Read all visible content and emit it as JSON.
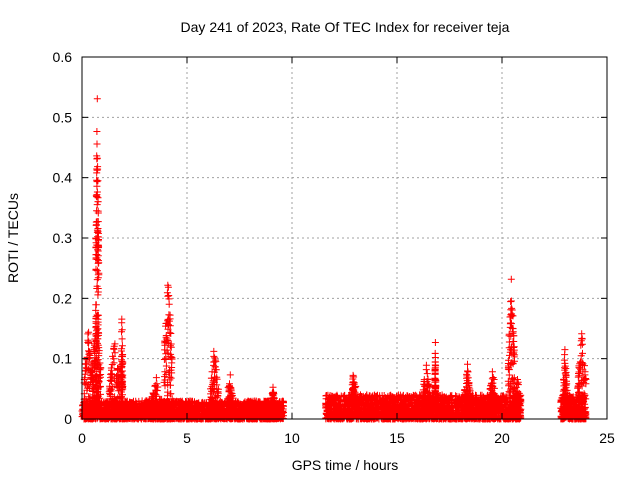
{
  "chart_data": {
    "type": "scatter",
    "title": "Day 241 of 2023, Rate Of TEC Index for receiver teja",
    "xlabel": "GPS time / hours",
    "ylabel": "ROTI / TECUs",
    "xlim": [
      0,
      25
    ],
    "ylim": [
      0,
      0.6
    ],
    "xticks": [
      0,
      5,
      10,
      15,
      20,
      25
    ],
    "yticks": [
      0,
      0.1,
      0.2,
      0.3,
      0.4,
      0.5,
      0.6
    ],
    "xtick_labels": [
      "0",
      "5",
      "10",
      "15",
      "20",
      "25"
    ],
    "ytick_labels": [
      "0",
      "0.1",
      "0.2",
      "0.3",
      "0.4",
      "0.5",
      "0.6"
    ],
    "grid": true,
    "marker": "plus",
    "colors": {
      "series": "#ff0000",
      "grid": "#a0a0a0",
      "axis": "#000000"
    },
    "segments": [
      {
        "x_start": 0.0,
        "x_end": 9.6,
        "typical_max": 0.03
      },
      {
        "x_start": 11.6,
        "x_end": 20.9,
        "typical_max": 0.04
      },
      {
        "x_start": 22.8,
        "x_end": 24.0,
        "typical_max": 0.04
      }
    ],
    "spikes": [
      {
        "x_start": 0.1,
        "x_end": 0.5,
        "y_max": 0.15
      },
      {
        "x_start": 0.5,
        "x_end": 0.9,
        "y_max": 0.19
      },
      {
        "x_start": 0.65,
        "x_end": 0.8,
        "y_max": 0.555
      },
      {
        "x_start": 1.3,
        "x_end": 1.8,
        "y_max": 0.13
      },
      {
        "x_start": 1.85,
        "x_end": 1.95,
        "y_max": 0.18
      },
      {
        "x_start": 3.3,
        "x_end": 3.8,
        "y_max": 0.07
      },
      {
        "x_start": 3.9,
        "x_end": 4.3,
        "y_max": 0.237
      },
      {
        "x_start": 6.1,
        "x_end": 6.5,
        "y_max": 0.125
      },
      {
        "x_start": 6.9,
        "x_end": 7.2,
        "y_max": 0.08
      },
      {
        "x_start": 9.0,
        "x_end": 9.2,
        "y_max": 0.055
      },
      {
        "x_start": 12.8,
        "x_end": 13.1,
        "y_max": 0.085
      },
      {
        "x_start": 16.2,
        "x_end": 16.6,
        "y_max": 0.09
      },
      {
        "x_start": 16.8,
        "x_end": 16.85,
        "y_max": 0.135
      },
      {
        "x_start": 18.2,
        "x_end": 18.5,
        "y_max": 0.095
      },
      {
        "x_start": 19.4,
        "x_end": 19.7,
        "y_max": 0.09
      },
      {
        "x_start": 20.3,
        "x_end": 20.6,
        "y_max": 0.24
      },
      {
        "x_start": 20.6,
        "x_end": 20.9,
        "y_max": 0.07
      },
      {
        "x_start": 22.9,
        "x_end": 23.1,
        "y_max": 0.12
      },
      {
        "x_start": 23.6,
        "x_end": 24.0,
        "y_max": 0.145
      }
    ]
  }
}
